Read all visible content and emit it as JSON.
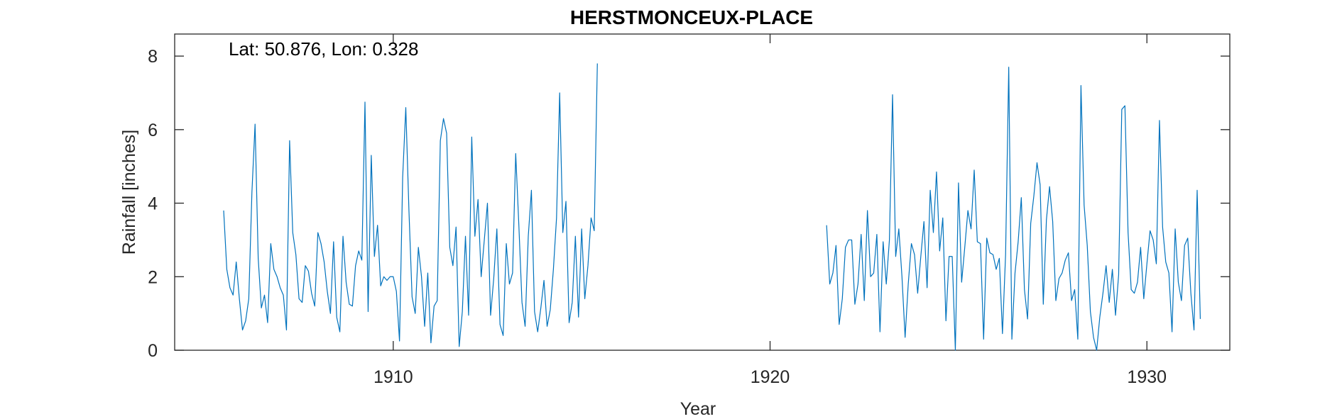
{
  "chart_data": {
    "type": "line",
    "title": "HERSTMONCEUX-PLACE",
    "xlabel": "Year",
    "ylabel": "Rainfall [inches]",
    "annotation": "Lat: 50.876, Lon: 0.328",
    "xlim": [
      1904.2,
      1932.2
    ],
    "ylim": [
      0,
      8.6
    ],
    "xticks": [
      1910,
      1920,
      1930
    ],
    "yticks": [
      0,
      2,
      4,
      6,
      8
    ],
    "grid": false,
    "series_color": "#0072BD",
    "series": [
      {
        "segments": [
          {
            "start": 1905.5,
            "step": 0.0833333,
            "values": [
              3.8,
              2.2,
              1.7,
              1.5,
              2.4,
              1.4,
              0.55,
              0.8,
              1.4,
              4.3,
              6.15,
              2.5,
              1.15,
              1.5,
              0.75,
              2.9,
              2.2,
              2.0,
              1.7,
              1.5,
              0.55,
              5.7,
              3.2,
              2.6,
              1.4,
              1.3,
              2.3,
              2.15,
              1.55,
              1.2,
              3.2,
              2.9,
              2.4,
              1.6,
              1.0,
              2.95,
              0.9,
              0.5,
              3.1,
              1.85,
              1.25,
              1.2,
              2.3,
              2.7,
              2.45,
              6.75,
              1.05,
              5.3,
              2.55,
              3.4,
              1.75,
              2.0,
              1.9,
              2.0,
              2.0,
              1.6,
              0.25,
              4.7,
              6.6,
              3.8,
              1.45,
              1.0,
              2.8,
              2.0,
              0.65,
              2.1,
              0.2,
              1.2,
              1.35,
              5.7,
              6.3,
              5.9,
              2.8,
              2.3,
              3.35,
              0.1,
              1.05,
              3.1,
              0.95,
              5.8,
              3.1,
              4.1,
              2.0,
              3.0,
              4.0,
              0.95,
              1.95,
              3.3,
              0.7,
              0.4,
              2.9,
              1.8,
              2.1,
              5.35,
              3.4,
              1.3,
              0.65,
              3.1,
              4.35,
              1.05,
              0.5,
              1.15,
              1.9,
              0.65,
              1.1,
              2.2,
              3.6,
              7.0,
              3.2,
              4.05,
              0.75,
              1.3,
              3.1,
              0.9,
              3.3,
              1.4,
              2.3,
              3.6,
              3.25,
              7.8
            ]
          },
          {
            "start": 1921.5,
            "step": 0.0833333,
            "values": [
              3.4,
              1.8,
              2.1,
              2.85,
              0.7,
              1.4,
              2.8,
              3.0,
              3.0,
              1.25,
              1.8,
              3.15,
              1.35,
              3.8,
              2.0,
              2.1,
              3.15,
              0.5,
              2.95,
              1.8,
              3.0,
              6.95,
              2.55,
              3.3,
              2.0,
              0.35,
              1.8,
              2.9,
              2.6,
              1.55,
              2.55,
              3.5,
              1.7,
              4.35,
              3.2,
              4.85,
              2.7,
              3.6,
              0.8,
              2.55,
              2.55,
              0.0,
              4.55,
              1.85,
              2.8,
              3.8,
              3.3,
              4.9,
              2.95,
              2.9,
              0.3,
              3.05,
              2.65,
              2.6,
              2.2,
              2.5,
              0.45,
              2.6,
              7.7,
              0.3,
              2.1,
              2.95,
              4.15,
              1.65,
              0.85,
              3.45,
              4.2,
              5.1,
              4.5,
              1.25,
              3.55,
              4.45,
              3.5,
              1.35,
              1.95,
              2.1,
              2.45,
              2.65,
              1.35,
              1.65,
              0.3,
              7.2,
              3.95,
              2.85,
              1.05,
              0.35,
              0.0,
              0.9,
              1.55,
              2.3,
              1.3,
              2.2,
              0.95,
              2.05,
              6.55,
              6.65,
              3.2,
              1.65,
              1.55,
              1.85,
              2.8,
              1.4,
              2.35,
              3.25,
              3.0,
              2.35,
              6.25,
              3.35,
              2.4,
              2.1,
              0.5,
              3.3,
              1.85,
              1.35,
              2.85,
              3.05,
              1.55,
              0.55,
              4.35,
              0.85
            ]
          }
        ]
      }
    ]
  }
}
